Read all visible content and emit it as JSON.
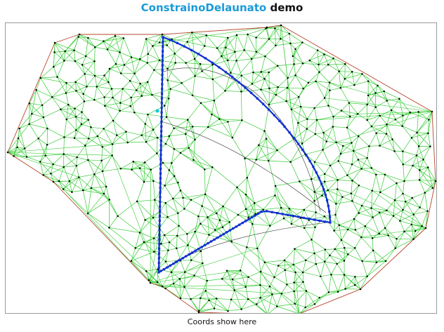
{
  "header": {
    "title_brand": "ConstrainoDelaunato",
    "title_suffix": "demo"
  },
  "status": {
    "coords_text": "Coords show here"
  },
  "colors": {
    "brand": "#1a9bd8",
    "mesh_edge": "#33cc33",
    "hull_edge": "#b5442a",
    "constraint_edge": "#1030d0",
    "vertex": "#000000",
    "highlight_vertex": "#00c8e0"
  }
}
